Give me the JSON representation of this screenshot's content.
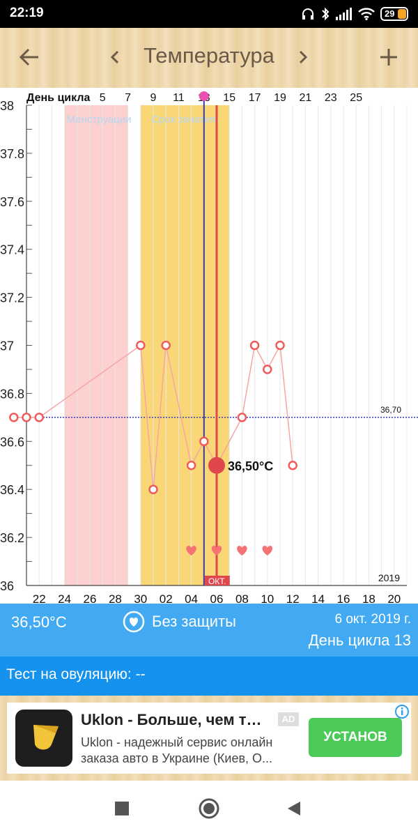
{
  "status_bar": {
    "time": "22:19",
    "battery": "29",
    "icons": [
      "headphones-icon",
      "bluetooth-icon",
      "signal-icon",
      "wifi-icon",
      "battery-icon"
    ]
  },
  "header": {
    "title": "Температура",
    "back_icon": "arrow-left-icon",
    "prev_icon": "chevron-left-icon",
    "next_icon": "chevron-right-icon",
    "add_icon": "plus-icon"
  },
  "chart_data": {
    "type": "line",
    "top_axis_label": "День цикла",
    "cycle_day_ticks": [
      "5",
      "7",
      "9",
      "11",
      "13",
      "15",
      "17",
      "19",
      "21",
      "23",
      "25"
    ],
    "date_ticks": [
      "22",
      "24",
      "26",
      "28",
      "30",
      "02",
      "04",
      "06",
      "08",
      "10",
      "12",
      "14",
      "16",
      "18",
      "20"
    ],
    "year_label": "2019",
    "month_marker": "ОКТ.",
    "y_ticks": [
      "38",
      "37.8",
      "37.6",
      "37.4",
      "37.2",
      "37",
      "36.8",
      "36.6",
      "36.4",
      "36.2",
      "36"
    ],
    "ylim": [
      36,
      38
    ],
    "x_days": [
      -1,
      30
    ],
    "coverline": {
      "value": 36.7,
      "label": "36,70"
    },
    "bands": [
      {
        "label": "Менструации",
        "start": 3,
        "end": 8,
        "color": "#fdd0d0",
        "label_color": "#b7d7f3"
      },
      {
        "label": "Срок зачатия",
        "start": 9,
        "end": 16,
        "color": "#fad776",
        "label_color": "#b7d7f3"
      }
    ],
    "ovulation_day": 14,
    "selected_day": 15,
    "selected_label": "36,50°C",
    "series": [
      {
        "points": [
          {
            "day": 0,
            "value": 36.7
          },
          {
            "day": 1,
            "value": 36.7
          },
          {
            "day": 9,
            "value": 37.0
          },
          {
            "day": 10,
            "value": 36.4
          },
          {
            "day": 11,
            "value": 37.0
          },
          {
            "day": 13,
            "value": 36.5
          },
          {
            "day": 14,
            "value": 36.6
          },
          {
            "day": 15,
            "value": 36.5
          },
          {
            "day": 17,
            "value": 36.7
          },
          {
            "day": 18,
            "value": 37.0
          },
          {
            "day": 19,
            "value": 36.9
          },
          {
            "day": 20,
            "value": 37.0
          },
          {
            "day": 21,
            "value": 36.5
          }
        ]
      }
    ],
    "heart_days": [
      13,
      15,
      17,
      19
    ],
    "grid": true
  },
  "info": {
    "temperature": "36,50°C",
    "protection": "Без защиты",
    "date": "6 окт. 2019 г.",
    "cycle_day": "День цикла 13"
  },
  "test": {
    "text": "Тест на овуляцию: --"
  },
  "ad": {
    "title": "Uklon - Больше, чем такси",
    "badge": "AD",
    "description": "Uklon - надежный сервис онлайн заказа авто в Украине (Киев, О...",
    "install": "УСТАНОВ"
  },
  "nav": {
    "icons": [
      "recent-apps-icon",
      "home-icon",
      "back-triangle-icon"
    ]
  }
}
